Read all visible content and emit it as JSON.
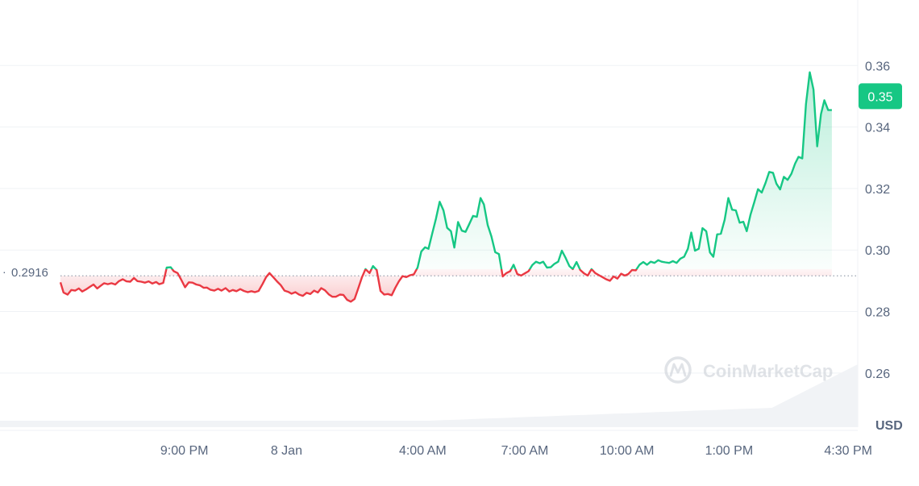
{
  "chart_data": {
    "type": "area",
    "baseline": {
      "value": 0.2916,
      "label": "0.2916"
    },
    "current_price": {
      "value": 0.35,
      "label": "0.35"
    },
    "currency": "USD",
    "watermark": "CoinMarketCap",
    "y_ticks": [
      "0.26",
      "0.28",
      "0.30",
      "0.32",
      "0.34",
      "0.36"
    ],
    "ylim": [
      0.2424,
      0.3813
    ],
    "x_ticks": [
      "9:00 PM",
      "8 Jan",
      "4:00 AM",
      "7:00 AM",
      "10:00 AM",
      "1:00 PM",
      "4:30 PM"
    ],
    "x_tick_hours": [
      21,
      24,
      28,
      31,
      34,
      37,
      40.5
    ],
    "xlim_hours": [
      17.36,
      40.78
    ],
    "grid": true,
    "colors": {
      "up": "#16c784",
      "down": "#ea3943",
      "grid": "#eff2f5",
      "text": "#58667e",
      "volume": "#f1f3f6"
    },
    "series": [
      {
        "points": [
          [
            17.36,
            0.2895
          ],
          [
            17.45,
            0.2862
          ],
          [
            17.57,
            0.2855
          ],
          [
            17.68,
            0.287
          ],
          [
            17.79,
            0.2868
          ],
          [
            17.9,
            0.2875
          ],
          [
            18.0,
            0.2865
          ],
          [
            18.11,
            0.2872
          ],
          [
            18.22,
            0.288
          ],
          [
            18.33,
            0.2888
          ],
          [
            18.44,
            0.2875
          ],
          [
            18.53,
            0.2883
          ],
          [
            18.64,
            0.2892
          ],
          [
            18.75,
            0.2889
          ],
          [
            18.86,
            0.2892
          ],
          [
            18.97,
            0.2888
          ],
          [
            19.08,
            0.2899
          ],
          [
            19.19,
            0.2905
          ],
          [
            19.3,
            0.2898
          ],
          [
            19.41,
            0.2897
          ],
          [
            19.52,
            0.2909
          ],
          [
            19.62,
            0.2899
          ],
          [
            19.73,
            0.2897
          ],
          [
            19.84,
            0.2894
          ],
          [
            19.95,
            0.2898
          ],
          [
            20.06,
            0.2891
          ],
          [
            20.17,
            0.2896
          ],
          [
            20.26,
            0.2889
          ],
          [
            20.38,
            0.2893
          ],
          [
            20.48,
            0.2943
          ],
          [
            20.6,
            0.2944
          ],
          [
            20.69,
            0.2931
          ],
          [
            20.8,
            0.2925
          ],
          [
            20.9,
            0.2905
          ],
          [
            21.02,
            0.2879
          ],
          [
            21.13,
            0.2895
          ],
          [
            21.24,
            0.2894
          ],
          [
            21.35,
            0.2888
          ],
          [
            21.46,
            0.2885
          ],
          [
            21.57,
            0.2877
          ],
          [
            21.66,
            0.2878
          ],
          [
            21.76,
            0.2871
          ],
          [
            21.88,
            0.2868
          ],
          [
            21.99,
            0.2874
          ],
          [
            22.09,
            0.2868
          ],
          [
            22.21,
            0.2876
          ],
          [
            22.32,
            0.2865
          ],
          [
            22.42,
            0.287
          ],
          [
            22.53,
            0.2866
          ],
          [
            22.64,
            0.2873
          ],
          [
            22.75,
            0.2867
          ],
          [
            22.86,
            0.2863
          ],
          [
            22.97,
            0.2866
          ],
          [
            23.07,
            0.2863
          ],
          [
            23.18,
            0.2867
          ],
          [
            23.3,
            0.289
          ],
          [
            23.4,
            0.2912
          ],
          [
            23.5,
            0.2925
          ],
          [
            23.61,
            0.2912
          ],
          [
            23.72,
            0.2898
          ],
          [
            23.83,
            0.2886
          ],
          [
            23.94,
            0.2868
          ],
          [
            24.05,
            0.2864
          ],
          [
            24.15,
            0.2858
          ],
          [
            24.26,
            0.2863
          ],
          [
            24.37,
            0.2855
          ],
          [
            24.48,
            0.2851
          ],
          [
            24.59,
            0.2861
          ],
          [
            24.7,
            0.2857
          ],
          [
            24.81,
            0.2868
          ],
          [
            24.92,
            0.2862
          ],
          [
            25.02,
            0.2876
          ],
          [
            25.13,
            0.2869
          ],
          [
            25.24,
            0.2856
          ],
          [
            25.35,
            0.2848
          ],
          [
            25.45,
            0.2848
          ],
          [
            25.57,
            0.2855
          ],
          [
            25.67,
            0.2854
          ],
          [
            25.78,
            0.2838
          ],
          [
            25.89,
            0.2832
          ],
          [
            26.0,
            0.2841
          ],
          [
            26.11,
            0.2876
          ],
          [
            26.22,
            0.2912
          ],
          [
            26.32,
            0.2938
          ],
          [
            26.44,
            0.2925
          ],
          [
            26.54,
            0.2948
          ],
          [
            26.65,
            0.2935
          ],
          [
            26.76,
            0.2867
          ],
          [
            26.87,
            0.2855
          ],
          [
            26.98,
            0.2857
          ],
          [
            27.09,
            0.2853
          ],
          [
            27.2,
            0.2878
          ],
          [
            27.3,
            0.2898
          ],
          [
            27.41,
            0.2915
          ],
          [
            27.52,
            0.2912
          ],
          [
            27.63,
            0.2918
          ],
          [
            27.74,
            0.2921
          ],
          [
            27.85,
            0.2943
          ],
          [
            27.96,
            0.2995
          ],
          [
            28.07,
            0.3009
          ],
          [
            28.17,
            0.3004
          ],
          [
            28.28,
            0.3053
          ],
          [
            28.39,
            0.3102
          ],
          [
            28.5,
            0.3157
          ],
          [
            28.61,
            0.3129
          ],
          [
            28.72,
            0.3072
          ],
          [
            28.83,
            0.3061
          ],
          [
            28.93,
            0.3008
          ],
          [
            29.04,
            0.3091
          ],
          [
            29.15,
            0.3063
          ],
          [
            29.26,
            0.3059
          ],
          [
            29.37,
            0.3085
          ],
          [
            29.48,
            0.3111
          ],
          [
            29.59,
            0.3108
          ],
          [
            29.7,
            0.3169
          ],
          [
            29.8,
            0.3148
          ],
          [
            29.91,
            0.3081
          ],
          [
            30.02,
            0.3044
          ],
          [
            30.13,
            0.2993
          ],
          [
            30.24,
            0.2987
          ],
          [
            30.35,
            0.2914
          ],
          [
            30.46,
            0.2925
          ],
          [
            30.57,
            0.2931
          ],
          [
            30.67,
            0.2952
          ],
          [
            30.78,
            0.2922
          ],
          [
            30.89,
            0.2917
          ],
          [
            31.0,
            0.2924
          ],
          [
            31.11,
            0.2931
          ],
          [
            31.22,
            0.2951
          ],
          [
            31.33,
            0.2962
          ],
          [
            31.44,
            0.2957
          ],
          [
            31.54,
            0.2962
          ],
          [
            31.65,
            0.2943
          ],
          [
            31.76,
            0.2944
          ],
          [
            31.87,
            0.2955
          ],
          [
            31.98,
            0.2962
          ],
          [
            32.09,
            0.2998
          ],
          [
            32.2,
            0.2974
          ],
          [
            32.31,
            0.2948
          ],
          [
            32.41,
            0.2938
          ],
          [
            32.52,
            0.2961
          ],
          [
            32.63,
            0.2935
          ],
          [
            32.74,
            0.2924
          ],
          [
            32.85,
            0.2917
          ],
          [
            32.96,
            0.2938
          ],
          [
            33.07,
            0.2925
          ],
          [
            33.18,
            0.2918
          ],
          [
            33.28,
            0.2912
          ],
          [
            33.39,
            0.2905
          ],
          [
            33.5,
            0.29
          ],
          [
            33.61,
            0.2914
          ],
          [
            33.72,
            0.2907
          ],
          [
            33.83,
            0.2923
          ],
          [
            33.94,
            0.2917
          ],
          [
            34.04,
            0.2922
          ],
          [
            34.15,
            0.2935
          ],
          [
            34.26,
            0.2934
          ],
          [
            34.37,
            0.2952
          ],
          [
            34.48,
            0.2961
          ],
          [
            34.59,
            0.2952
          ],
          [
            34.7,
            0.2962
          ],
          [
            34.81,
            0.2958
          ],
          [
            34.92,
            0.2967
          ],
          [
            35.02,
            0.2962
          ],
          [
            35.13,
            0.296
          ],
          [
            35.24,
            0.2958
          ],
          [
            35.35,
            0.2964
          ],
          [
            35.46,
            0.2958
          ],
          [
            35.57,
            0.2972
          ],
          [
            35.68,
            0.2978
          ],
          [
            35.79,
            0.3004
          ],
          [
            35.89,
            0.3057
          ],
          [
            36.0,
            0.2998
          ],
          [
            36.11,
            0.3004
          ],
          [
            36.22,
            0.3071
          ],
          [
            36.33,
            0.3061
          ],
          [
            36.44,
            0.2992
          ],
          [
            36.54,
            0.2978
          ],
          [
            36.65,
            0.3051
          ],
          [
            36.76,
            0.3053
          ],
          [
            36.87,
            0.3098
          ],
          [
            36.98,
            0.3169
          ],
          [
            37.09,
            0.3131
          ],
          [
            37.2,
            0.3129
          ],
          [
            37.31,
            0.3089
          ],
          [
            37.42,
            0.3092
          ],
          [
            37.52,
            0.3061
          ],
          [
            37.63,
            0.3115
          ],
          [
            37.74,
            0.3155
          ],
          [
            37.85,
            0.3198
          ],
          [
            37.96,
            0.3187
          ],
          [
            38.07,
            0.3218
          ],
          [
            38.18,
            0.3254
          ],
          [
            38.29,
            0.3251
          ],
          [
            38.39,
            0.3216
          ],
          [
            38.5,
            0.3197
          ],
          [
            38.61,
            0.3238
          ],
          [
            38.72,
            0.3228
          ],
          [
            38.83,
            0.3248
          ],
          [
            38.94,
            0.3281
          ],
          [
            39.04,
            0.3303
          ],
          [
            39.15,
            0.3298
          ],
          [
            39.26,
            0.3475
          ],
          [
            39.37,
            0.3578
          ],
          [
            39.48,
            0.3522
          ],
          [
            39.59,
            0.3337
          ],
          [
            39.7,
            0.3442
          ],
          [
            39.8,
            0.3487
          ],
          [
            39.91,
            0.3455
          ],
          [
            40.02,
            0.3455
          ]
        ]
      }
    ]
  }
}
